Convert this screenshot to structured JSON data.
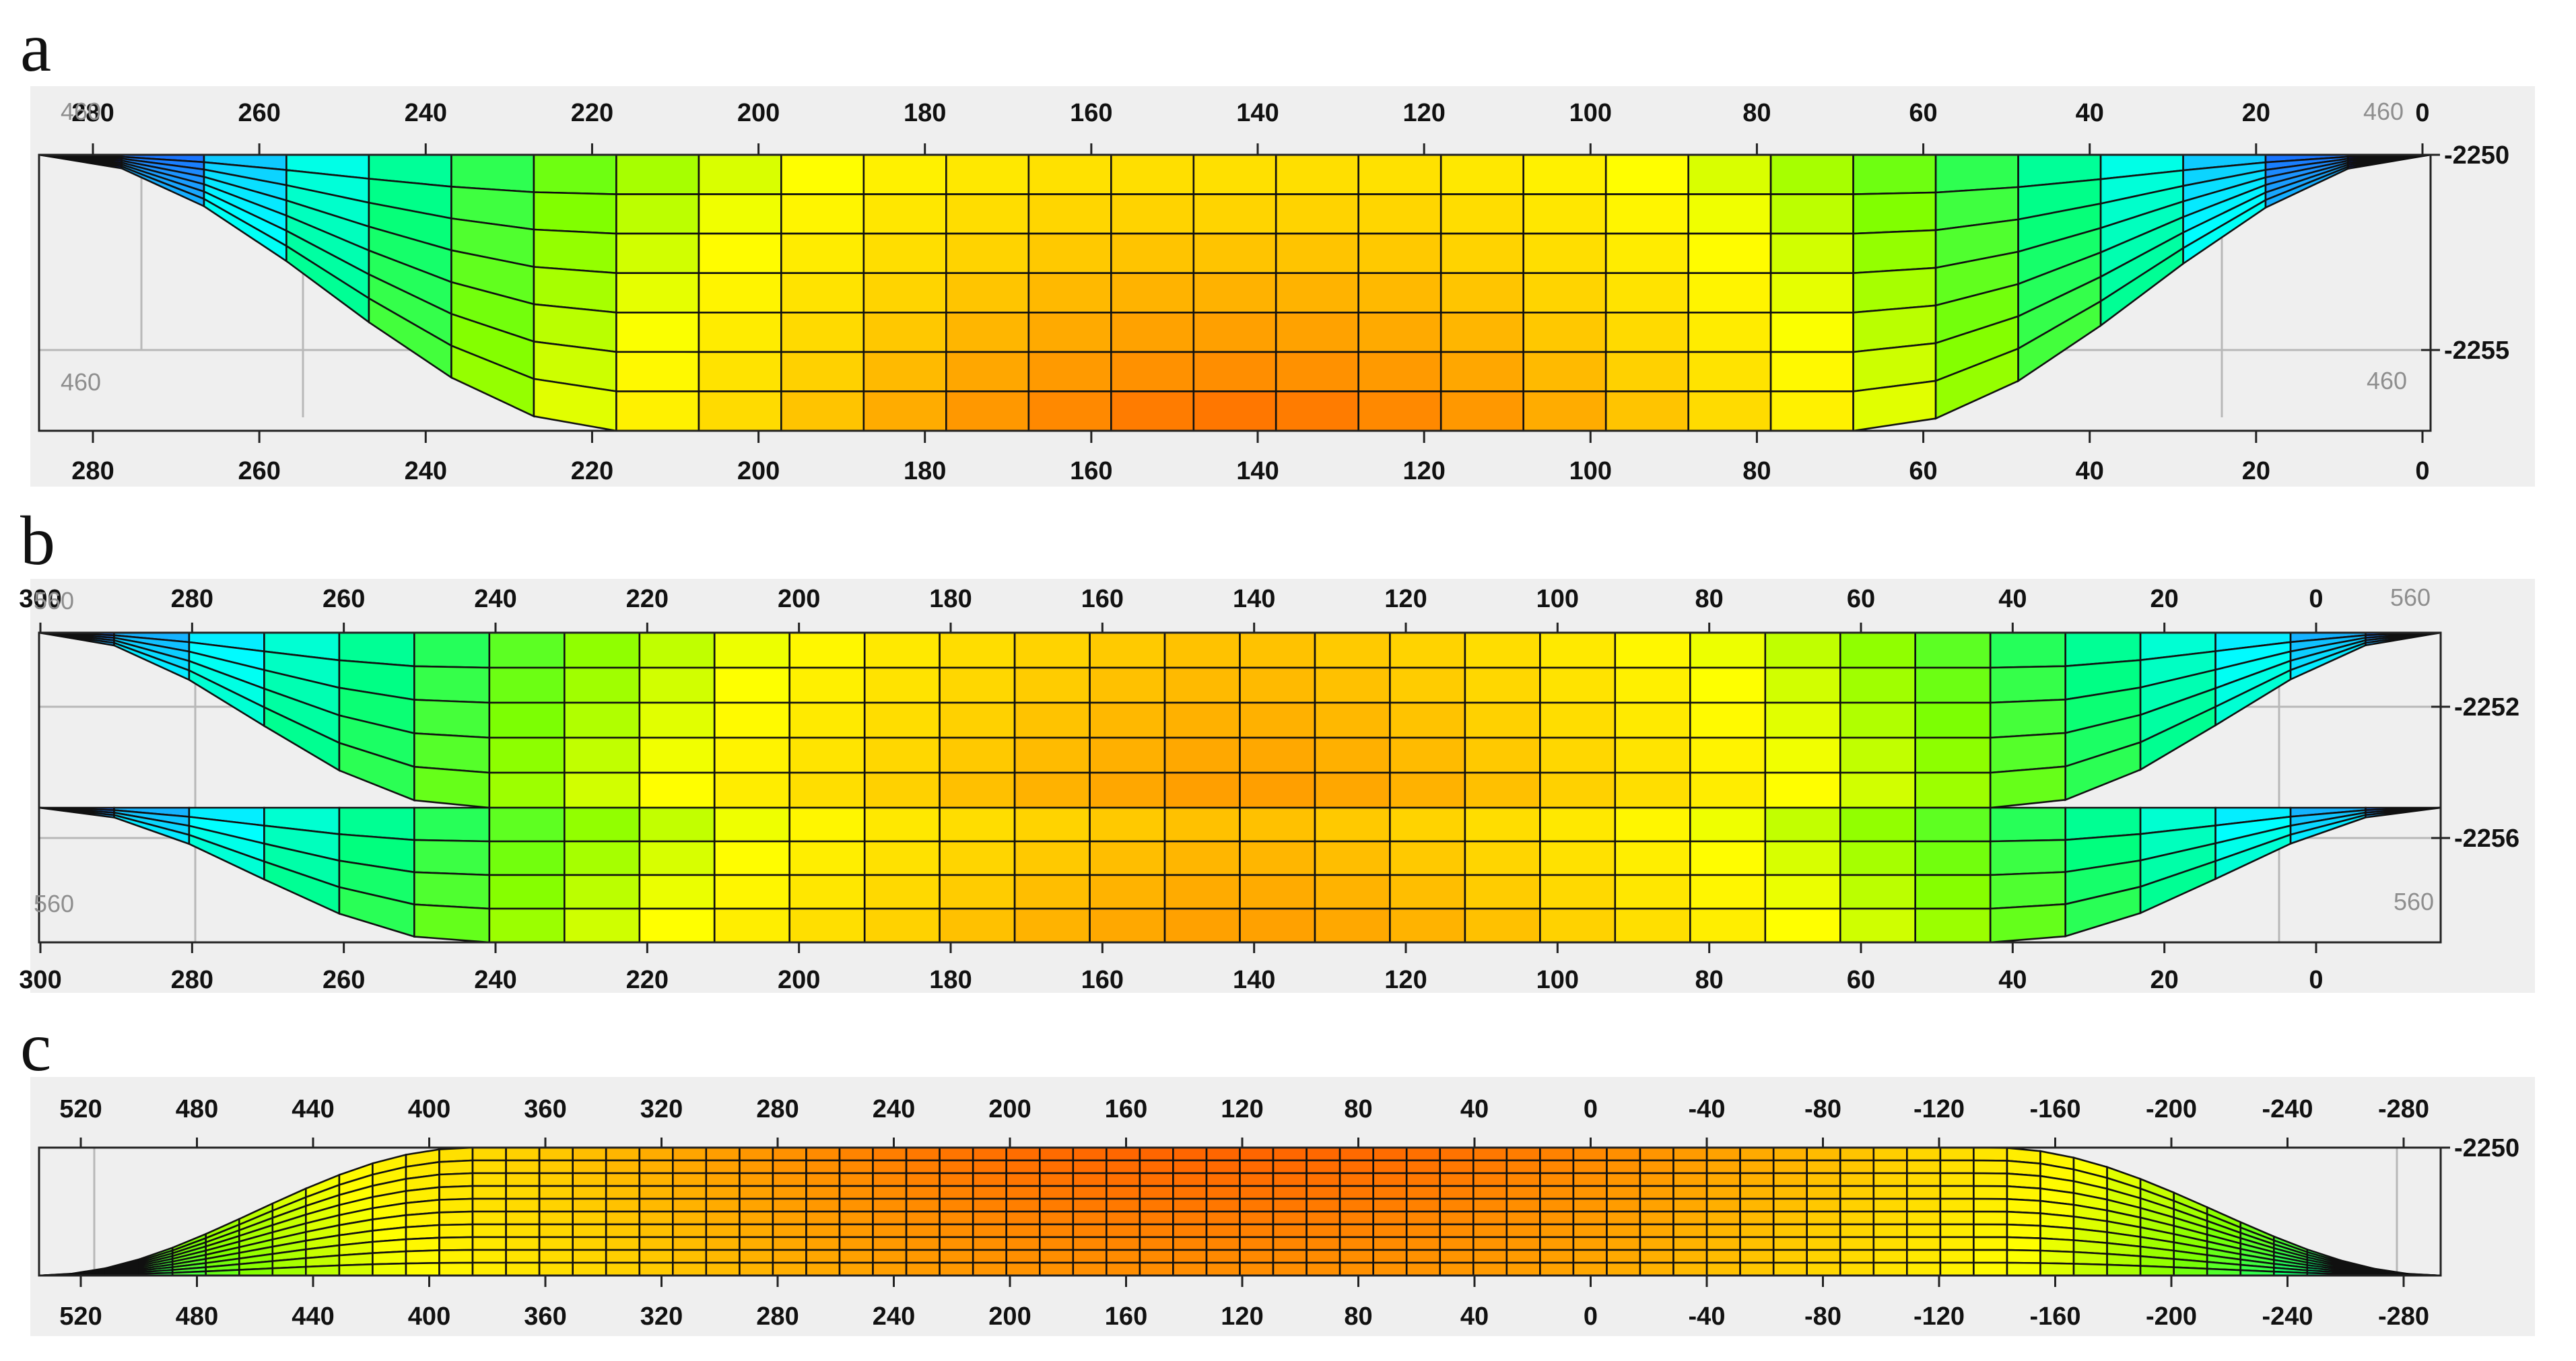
{
  "panels": [
    {
      "letter": "a",
      "top_ticks": [
        "280",
        "260",
        "240",
        "220",
        "200",
        "180",
        "160",
        "140",
        "120",
        "100",
        "80",
        "60",
        "40",
        "20",
        "0"
      ],
      "bottom_ticks": [
        "280",
        "260",
        "240",
        "220",
        "200",
        "180",
        "160",
        "140",
        "120",
        "100",
        "80",
        "60",
        "40",
        "20",
        "0"
      ],
      "depth_ticks": [
        "-2250",
        "-2255"
      ],
      "ghost_labels": [
        "460",
        "460",
        "460",
        "460"
      ]
    },
    {
      "letter": "b",
      "top_ticks": [
        "300",
        "280",
        "260",
        "240",
        "220",
        "200",
        "180",
        "160",
        "140",
        "120",
        "100",
        "80",
        "60",
        "40",
        "20",
        "0"
      ],
      "bottom_ticks": [
        "300",
        "280",
        "260",
        "240",
        "220",
        "200",
        "180",
        "160",
        "140",
        "120",
        "100",
        "80",
        "60",
        "40",
        "20",
        "0"
      ],
      "depth_ticks": [
        "-2252",
        "-2256"
      ],
      "ghost_labels": [
        "560",
        "560",
        "560",
        "560"
      ]
    },
    {
      "letter": "c",
      "top_ticks": [
        "520",
        "480",
        "440",
        "400",
        "360",
        "320",
        "280",
        "240",
        "200",
        "160",
        "120",
        "80",
        "40",
        "0",
        "-40",
        "-80",
        "-120",
        "-160",
        "-200",
        "-240",
        "-280"
      ],
      "bottom_ticks": [
        "520",
        "480",
        "440",
        "400",
        "360",
        "320",
        "280",
        "240",
        "200",
        "160",
        "120",
        "80",
        "40",
        "0",
        "-40",
        "-80",
        "-120",
        "-160",
        "-200",
        "-240",
        "-280"
      ],
      "depth_ticks": [
        "-2250"
      ],
      "ghost_labels": []
    }
  ],
  "colors": {
    "panel_background": "#efefef",
    "mesh_line": "#101010",
    "colormap": [
      "#0000ff",
      "#1e90ff",
      "#00ffff",
      "#00ff7f",
      "#7fff00",
      "#ffff00",
      "#ffd000",
      "#ff8c00",
      "#ff3000"
    ]
  }
}
